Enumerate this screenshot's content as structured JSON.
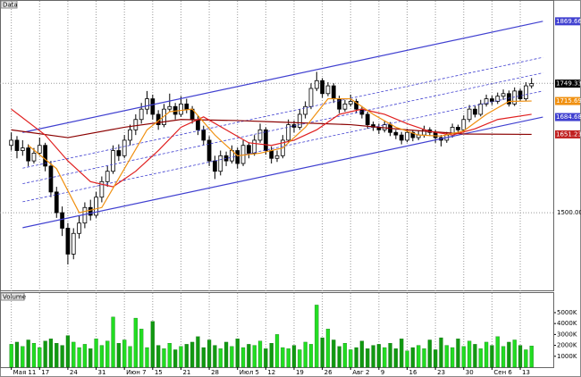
{
  "chart_data": [
    {
      "type": "candlestick",
      "title": "Data",
      "xlim": [
        -2,
        96
      ],
      "ylim": [
        1350,
        1897
      ],
      "yticks": [
        {
          "value": 1750,
          "label": "1750.00"
        },
        {
          "value": 1500,
          "label": "1500.00"
        }
      ],
      "xticks": [
        {
          "value": 0,
          "label": "Мая 11"
        },
        {
          "value": 5,
          "label": "17"
        },
        {
          "value": 10,
          "label": "24"
        },
        {
          "value": 15,
          "label": "31"
        },
        {
          "value": 20,
          "label": "Июн 7"
        },
        {
          "value": 25,
          "label": "15"
        },
        {
          "value": 30,
          "label": "21"
        },
        {
          "value": 35,
          "label": "28"
        },
        {
          "value": 40,
          "label": "Июл 5"
        },
        {
          "value": 45,
          "label": "12"
        },
        {
          "value": 50,
          "label": "19"
        },
        {
          "value": 55,
          "label": "26"
        },
        {
          "value": 60,
          "label": "Авг 2"
        },
        {
          "value": 65,
          "label": "9"
        },
        {
          "value": 70,
          "label": "16"
        },
        {
          "value": 75,
          "label": "23"
        },
        {
          "value": 80,
          "label": "30"
        },
        {
          "value": 85,
          "label": "Сен 6"
        },
        {
          "value": 90,
          "label": "13"
        }
      ],
      "up_color": "#ffffff",
      "down_color": "#000000",
      "candles": [
        [
          1630,
          1655,
          1620,
          1640
        ],
        [
          1640,
          1648,
          1605,
          1620
        ],
        [
          1620,
          1640,
          1610,
          1625
        ],
        [
          1625,
          1632,
          1590,
          1600
        ],
        [
          1600,
          1625,
          1595,
          1615
        ],
        [
          1615,
          1645,
          1610,
          1630
        ],
        [
          1630,
          1635,
          1580,
          1590
        ],
        [
          1590,
          1600,
          1530,
          1540
        ],
        [
          1540,
          1550,
          1490,
          1500
        ],
        [
          1500,
          1512,
          1455,
          1470
        ],
        [
          1470,
          1480,
          1400,
          1420
        ],
        [
          1420,
          1470,
          1410,
          1460
        ],
        [
          1460,
          1495,
          1450,
          1480
        ],
        [
          1480,
          1520,
          1470,
          1510
        ],
        [
          1510,
          1525,
          1485,
          1495
        ],
        [
          1495,
          1540,
          1490,
          1530
        ],
        [
          1530,
          1570,
          1520,
          1560
        ],
        [
          1560,
          1590,
          1550,
          1580
        ],
        [
          1580,
          1630,
          1575,
          1620
        ],
        [
          1620,
          1632,
          1600,
          1610
        ],
        [
          1610,
          1650,
          1605,
          1640
        ],
        [
          1640,
          1670,
          1630,
          1660
        ],
        [
          1660,
          1690,
          1650,
          1680
        ],
        [
          1680,
          1712,
          1672,
          1700
        ],
        [
          1700,
          1735,
          1690,
          1720
        ],
        [
          1720,
          1728,
          1680,
          1690
        ],
        [
          1690,
          1698,
          1660,
          1670
        ],
        [
          1670,
          1710,
          1665,
          1700
        ],
        [
          1700,
          1730,
          1695,
          1705
        ],
        [
          1705,
          1712,
          1680,
          1690
        ],
        [
          1690,
          1725,
          1685,
          1710
        ],
        [
          1710,
          1720,
          1692,
          1700
        ],
        [
          1700,
          1706,
          1672,
          1680
        ],
        [
          1680,
          1688,
          1650,
          1660
        ],
        [
          1660,
          1668,
          1630,
          1640
        ],
        [
          1640,
          1648,
          1590,
          1600
        ],
        [
          1600,
          1610,
          1565,
          1580
        ],
        [
          1580,
          1620,
          1572,
          1610
        ],
        [
          1610,
          1618,
          1590,
          1600
        ],
        [
          1600,
          1630,
          1595,
          1620
        ],
        [
          1620,
          1626,
          1585,
          1595
        ],
        [
          1595,
          1640,
          1590,
          1630
        ],
        [
          1630,
          1636,
          1605,
          1615
        ],
        [
          1615,
          1650,
          1610,
          1640
        ],
        [
          1640,
          1672,
          1635,
          1660
        ],
        [
          1660,
          1665,
          1612,
          1620
        ],
        [
          1620,
          1628,
          1595,
          1605
        ],
        [
          1605,
          1620,
          1598,
          1610
        ],
        [
          1610,
          1650,
          1605,
          1640
        ],
        [
          1640,
          1680,
          1635,
          1670
        ],
        [
          1670,
          1678,
          1655,
          1665
        ],
        [
          1665,
          1700,
          1660,
          1690
        ],
        [
          1690,
          1715,
          1682,
          1705
        ],
        [
          1705,
          1750,
          1700,
          1740
        ],
        [
          1740,
          1772,
          1735,
          1755
        ],
        [
          1755,
          1760,
          1722,
          1730
        ],
        [
          1730,
          1752,
          1725,
          1745
        ],
        [
          1745,
          1750,
          1712,
          1720
        ],
        [
          1720,
          1726,
          1692,
          1700
        ],
        [
          1700,
          1718,
          1695,
          1710
        ],
        [
          1710,
          1728,
          1705,
          1715
        ],
        [
          1715,
          1720,
          1692,
          1700
        ],
        [
          1700,
          1706,
          1682,
          1690
        ],
        [
          1690,
          1695,
          1662,
          1670
        ],
        [
          1670,
          1676,
          1658,
          1665
        ],
        [
          1665,
          1672,
          1652,
          1660
        ],
        [
          1660,
          1678,
          1655,
          1670
        ],
        [
          1670,
          1675,
          1648,
          1655
        ],
        [
          1655,
          1660,
          1642,
          1650
        ],
        [
          1650,
          1656,
          1632,
          1640
        ],
        [
          1640,
          1662,
          1636,
          1655
        ],
        [
          1655,
          1660,
          1638,
          1645
        ],
        [
          1645,
          1658,
          1640,
          1650
        ],
        [
          1650,
          1668,
          1645,
          1660
        ],
        [
          1660,
          1665,
          1648,
          1655
        ],
        [
          1655,
          1660,
          1635,
          1645
        ],
        [
          1645,
          1650,
          1628,
          1640
        ],
        [
          1640,
          1656,
          1635,
          1650
        ],
        [
          1650,
          1672,
          1645,
          1665
        ],
        [
          1665,
          1670,
          1652,
          1660
        ],
        [
          1660,
          1688,
          1655,
          1680
        ],
        [
          1680,
          1708,
          1675,
          1700
        ],
        [
          1700,
          1706,
          1684,
          1690
        ],
        [
          1690,
          1718,
          1686,
          1710
        ],
        [
          1710,
          1728,
          1705,
          1720
        ],
        [
          1720,
          1726,
          1708,
          1715
        ],
        [
          1715,
          1732,
          1710,
          1725
        ],
        [
          1725,
          1738,
          1718,
          1730
        ],
        [
          1730,
          1736,
          1705,
          1710
        ],
        [
          1710,
          1742,
          1706,
          1735
        ],
        [
          1735,
          1740,
          1715,
          1720
        ],
        [
          1720,
          1752,
          1716,
          1745
        ],
        [
          1745,
          1760,
          1740,
          1749.33
        ]
      ],
      "lines": [
        {
          "color": "#4040d0",
          "dash": false,
          "x": [
            2,
            94
          ],
          "values": [
            1655,
            1869.66
          ]
        },
        {
          "color": "#4040d0",
          "dash": true,
          "x": [
            2,
            94
          ],
          "values": [
            1586,
            1800
          ]
        },
        {
          "color": "#4040d0",
          "dash": true,
          "x": [
            2,
            94
          ],
          "values": [
            1556,
            1770
          ]
        },
        {
          "color": "#4040d0",
          "dash": true,
          "x": [
            2,
            94
          ],
          "values": [
            1521,
            1735
          ]
        },
        {
          "color": "#4040d0",
          "dash": false,
          "x": [
            2,
            94
          ],
          "values": [
            1471,
            1684.68
          ]
        },
        {
          "color": "#8b0000",
          "dash": false,
          "x": [
            0,
            10,
            20,
            30,
            40,
            50,
            60,
            70,
            80,
            92
          ],
          "values": [
            1660,
            1645,
            1665,
            1680,
            1678,
            1674,
            1670,
            1660,
            1652,
            1651.23
          ]
        },
        {
          "color": "#e02020",
          "dash": false,
          "x": [
            0,
            6,
            10,
            14,
            18,
            22,
            26,
            30,
            34,
            38,
            42,
            46,
            50,
            54,
            58,
            62,
            66,
            70,
            74,
            78,
            82,
            86,
            92
          ],
          "values": [
            1700,
            1650,
            1600,
            1560,
            1550,
            1580,
            1620,
            1665,
            1685,
            1660,
            1635,
            1630,
            1640,
            1660,
            1690,
            1700,
            1690,
            1672,
            1657,
            1650,
            1662,
            1680,
            1690
          ]
        },
        {
          "color": "#f09010",
          "dash": false,
          "x": [
            3,
            8,
            12,
            16,
            20,
            24,
            28,
            32,
            36,
            40,
            44,
            48,
            52,
            56,
            60,
            64,
            68,
            72,
            76,
            80,
            84,
            88,
            92
          ],
          "values": [
            1630,
            1585,
            1500,
            1510,
            1585,
            1660,
            1695,
            1700,
            1650,
            1610,
            1615,
            1625,
            1665,
            1720,
            1720,
            1690,
            1665,
            1650,
            1648,
            1658,
            1690,
            1715,
            1715.69
          ]
        }
      ],
      "price_labels": [
        {
          "value": 1869.66,
          "color": "#4040d0"
        },
        {
          "value": 1749.33,
          "color": "#000000"
        },
        {
          "value": 1715.69,
          "color": "#f09010"
        },
        {
          "value": 1684.68,
          "color": "#4040d0"
        },
        {
          "value": 1651.23,
          "color": "#c02020"
        }
      ]
    },
    {
      "type": "bar",
      "title": "Volume",
      "xlim": [
        -2,
        96
      ],
      "ylim": [
        0,
        6800
      ],
      "yticks": [
        {
          "value": 1000,
          "label": "1000K"
        },
        {
          "value": 2000,
          "label": "2000K"
        },
        {
          "value": 3000,
          "label": "3000K"
        },
        {
          "value": 4000,
          "label": "4000K"
        },
        {
          "value": 5000,
          "label": "5000K"
        }
      ],
      "up_color": "#22dd22",
      "down_color": "#119911",
      "values": [
        2100,
        2300,
        1900,
        2500,
        2200,
        1800,
        2400,
        2600,
        2200,
        2000,
        2900,
        2300,
        1800,
        2100,
        1700,
        2600,
        2000,
        2400,
        4600,
        2200,
        2500,
        1900,
        4500,
        3500,
        1800,
        4200,
        2000,
        1700,
        2200,
        1600,
        1900,
        2100,
        2300,
        2800,
        1800,
        2500,
        2000,
        1700,
        2300,
        1900,
        2600,
        1800,
        2100,
        2000,
        2400,
        1700,
        2200,
        3000,
        1800,
        1700,
        2000,
        1600,
        2300,
        2100,
        5700,
        2700,
        3500,
        2500,
        1900,
        2200,
        1600,
        1800,
        2400,
        1700,
        2000,
        2100,
        1800,
        2200,
        1700,
        2600,
        1500,
        1800,
        2000,
        1700,
        2500,
        1600,
        2700,
        2000,
        1800,
        2600,
        1900,
        2400,
        2100,
        1700,
        2300,
        2000,
        2800,
        1900,
        2300,
        2500,
        2000,
        1600,
        1950
      ]
    }
  ]
}
